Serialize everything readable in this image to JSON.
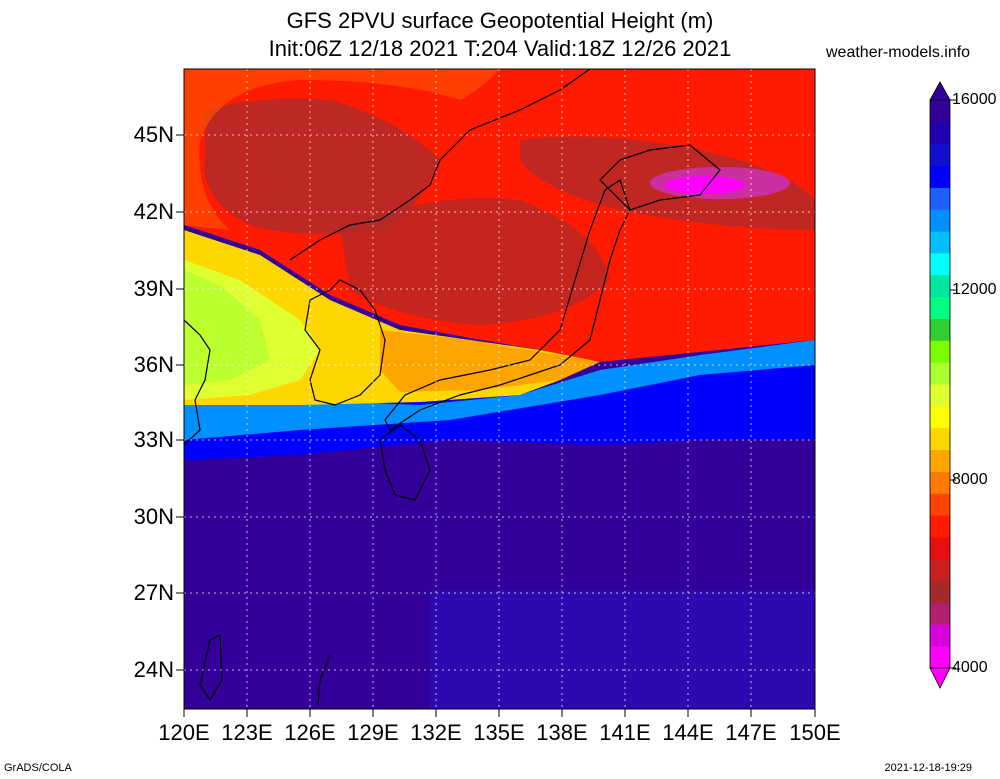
{
  "title_line1": "GFS 2PVU surface Geopotential Height (m)",
  "title_line2": "Init:06Z 12/18 2021 T:204 Valid:18Z 12/26 2021",
  "site": "weather-models.info",
  "lat_labels": [
    "45N",
    "42N",
    "39N",
    "36N",
    "33N",
    "30N",
    "27N",
    "24N"
  ],
  "lon_labels": [
    "120E",
    "123E",
    "126E",
    "129E",
    "132E",
    "135E",
    "138E",
    "141E",
    "144E",
    "147E",
    "150E"
  ],
  "colorbar": {
    "labels": [
      "16000",
      "12000",
      "8000",
      "4000"
    ],
    "colors": [
      "#ff00ff",
      "#d900d9",
      "#b02070",
      "#a52a2a",
      "#c82020",
      "#e61010",
      "#ff1a00",
      "#ff4500",
      "#ff7a00",
      "#ffa500",
      "#ffd700",
      "#ffff00",
      "#e0ff30",
      "#adff2f",
      "#7cfc00",
      "#32cd32",
      "#00ff7f",
      "#00e5a0",
      "#00ffff",
      "#00bfff",
      "#0090ff",
      "#1e60ff",
      "#0000ff",
      "#1010cd",
      "#2000b0",
      "#330099"
    ]
  },
  "colors": {
    "ocean_south": "#330099",
    "tropopause_band": "#0000ff",
    "mid_lat": "#ffd700",
    "north_high": "#ff2000",
    "north_core": "#b22a2a",
    "min_core": "#ff00ff"
  },
  "footer_left": "GrADS/COLA",
  "footer_right": "2021-12-18-19:29"
}
